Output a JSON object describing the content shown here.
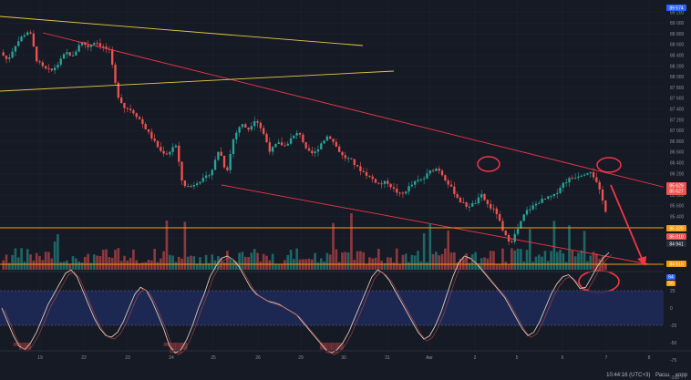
{
  "price_axis": {
    "labels": [
      "89 200",
      "89 000",
      "88 800",
      "88 600",
      "88 400",
      "88 200",
      "88 000",
      "87 800",
      "87 600",
      "87 400",
      "87 200",
      "87 000",
      "86 800",
      "86 600",
      "86 400",
      "86 200",
      "86 000",
      "85 800",
      "85 600",
      "85 400",
      "85 200",
      "85 000"
    ],
    "top_tag": "89 574",
    "tag_current": "85 629",
    "tag_current_sub": "85 627",
    "tag_level_1": "85 320",
    "tag_level_2": "85 010",
    "tag_volume": "84 941",
    "tag_bottom": "84 616"
  },
  "osc_axis": {
    "labels": [
      "25",
      "0",
      "-25",
      "-50",
      "-75",
      "-100"
    ],
    "tag_1": "64",
    "tag_2": "56"
  },
  "date_axis": {
    "labels": [
      "19",
      "22",
      "23",
      "24",
      "25",
      "26",
      "29",
      "30",
      "31",
      "Авг",
      "2",
      "5",
      "6",
      "7",
      "8"
    ]
  },
  "status_bar": {
    "time": "10:44:16 (UTC+3)",
    "mode": "Расш.",
    "scale": "корр"
  },
  "colors": {
    "background": "#161a25",
    "up_candle": "#26a69a",
    "down_candle": "#ef5350",
    "trend_red": "#f23645",
    "trend_yellow": "#e6c846",
    "level_orange": "#f39c12",
    "osc_band": "#1e2c5a"
  },
  "chart_data": {
    "type": "candlestick",
    "ylim": [
      84600,
      89600
    ],
    "price_path": [
      88500,
      88350,
      88620,
      88790,
      88900,
      88350,
      88200,
      88160,
      88300,
      88500,
      88420,
      88700,
      88600,
      88700,
      88600,
      88520,
      87750,
      87500,
      87450,
      87300,
      87100,
      86900,
      86700,
      86650,
      86850,
      86100,
      86050,
      86150,
      86200,
      86350,
      86750,
      86300,
      86950,
      87200,
      87100,
      87300,
      87050,
      86700,
      86850,
      86800,
      86950,
      87050,
      86700,
      86650,
      86850,
      87000,
      86800,
      86600,
      86550,
      86400,
      86300,
      86200,
      86100,
      86150,
      86000,
      85900,
      86050,
      86150,
      86200,
      86350,
      86400,
      86200,
      86000,
      85800,
      85700,
      85750,
      85900,
      85700,
      85600,
      85200,
      85050,
      85300,
      85600,
      85700,
      85800,
      85850,
      85900,
      86100,
      86200,
      86250,
      86300,
      86350,
      86050,
      85629
    ],
    "oscillator_path": [
      0,
      -20,
      -40,
      -55,
      -60,
      -50,
      -35,
      -15,
      5,
      20,
      35,
      50,
      55,
      45,
      25,
      5,
      -15,
      -30,
      -40,
      -42,
      -35,
      -20,
      0,
      20,
      30,
      25,
      10,
      -10,
      -30,
      -55,
      -65,
      -60,
      -45,
      -25,
      0,
      20,
      45,
      60,
      72,
      75,
      70,
      60,
      45,
      30,
      20,
      15,
      10,
      8,
      5,
      0,
      -5,
      -10,
      -20,
      -30,
      -40,
      -50,
      -60,
      -65,
      -60,
      -50,
      -35,
      -15,
      5,
      25,
      45,
      55,
      50,
      40,
      25,
      10,
      -5,
      -20,
      -35,
      -45,
      -40,
      -25,
      -5,
      20,
      45,
      65,
      75,
      72,
      65,
      55,
      45,
      35,
      25,
      15,
      0,
      -15,
      -30,
      -40,
      -35,
      -20,
      0,
      20,
      35,
      45,
      48,
      40,
      28,
      30,
      45,
      60,
      72,
      80
    ]
  }
}
